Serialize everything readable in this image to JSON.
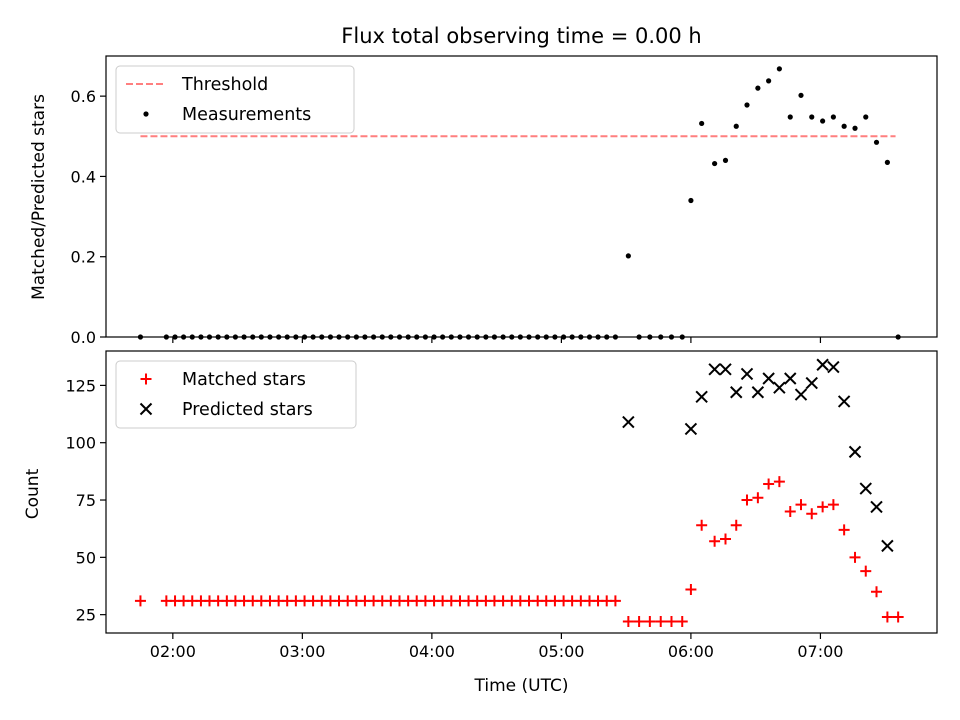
{
  "chart_data": [
    {
      "type": "scatter",
      "title": "Flux total observing time = 0.00 h",
      "xlabel": "",
      "ylabel": "Matched/Predicted stars",
      "xlim": [
        1.484,
        7.9
      ],
      "ylim": [
        0.0,
        0.7
      ],
      "yticks": [
        0.0,
        0.2,
        0.4,
        0.6
      ],
      "ytick_labels": [
        "0.0",
        "0.2",
        "0.4",
        "0.6"
      ],
      "grid": false,
      "legend_position": "top-left",
      "series": [
        {
          "name": "Threshold",
          "kind": "line",
          "style": "dashed",
          "color": "#ff7f7f",
          "x": [
            1.75,
            7.58
          ],
          "y": [
            0.5,
            0.5
          ]
        },
        {
          "name": "Measurements",
          "kind": "scatter",
          "marker": "dot",
          "color": "#000000",
          "x": [
            1.75,
            1.95,
            2.017,
            2.083,
            2.15,
            2.217,
            2.283,
            2.35,
            2.417,
            2.483,
            2.55,
            2.617,
            2.683,
            2.75,
            2.817,
            2.883,
            2.95,
            3.017,
            3.083,
            3.15,
            3.217,
            3.283,
            3.35,
            3.417,
            3.483,
            3.55,
            3.617,
            3.683,
            3.75,
            3.817,
            3.883,
            3.95,
            4.017,
            4.083,
            4.15,
            4.217,
            4.283,
            4.35,
            4.417,
            4.483,
            4.55,
            4.617,
            4.683,
            4.75,
            4.817,
            4.883,
            4.95,
            5.017,
            5.083,
            5.15,
            5.217,
            5.283,
            5.35,
            5.417,
            5.517,
            5.6,
            5.683,
            5.767,
            5.85,
            5.933,
            6.0,
            6.083,
            6.183,
            6.267,
            6.35,
            6.433,
            6.517,
            6.6,
            6.683,
            6.767,
            6.85,
            6.933,
            7.017,
            7.1,
            7.183,
            7.267,
            7.35,
            7.433,
            7.517,
            7.6
          ],
          "y": [
            0,
            0,
            0,
            0,
            0,
            0,
            0,
            0,
            0,
            0,
            0,
            0,
            0,
            0,
            0,
            0,
            0,
            0,
            0,
            0,
            0,
            0,
            0,
            0,
            0,
            0,
            0,
            0,
            0,
            0,
            0,
            0,
            0,
            0,
            0,
            0,
            0,
            0,
            0,
            0,
            0,
            0,
            0,
            0,
            0,
            0,
            0,
            0,
            0,
            0,
            0,
            0,
            0,
            0,
            0.202,
            0,
            0,
            0,
            0,
            0,
            0.34,
            0.532,
            0.432,
            0.44,
            0.525,
            0.578,
            0.62,
            0.638,
            0.668,
            0.548,
            0.602,
            0.548,
            0.538,
            0.548,
            0.525,
            0.52,
            0.548,
            0.485,
            0.435,
            0
          ]
        }
      ]
    },
    {
      "type": "scatter",
      "title": "",
      "xlabel": "Time (UTC)",
      "ylabel": "Count",
      "xlim": [
        1.484,
        7.9
      ],
      "ylim": [
        17,
        140
      ],
      "xticks": [
        2,
        3,
        4,
        5,
        6,
        7
      ],
      "xtick_labels": [
        "02:00",
        "03:00",
        "04:00",
        "05:00",
        "06:00",
        "07:00"
      ],
      "yticks": [
        25,
        50,
        75,
        100,
        125
      ],
      "ytick_labels": [
        "25",
        "50",
        "75",
        "100",
        "125"
      ],
      "grid": false,
      "legend_position": "top-left",
      "series": [
        {
          "name": "Matched stars",
          "kind": "scatter",
          "marker": "plus",
          "color": "#ff0000",
          "x": [
            1.75,
            1.95,
            2.017,
            2.083,
            2.15,
            2.217,
            2.283,
            2.35,
            2.417,
            2.483,
            2.55,
            2.617,
            2.683,
            2.75,
            2.817,
            2.883,
            2.95,
            3.017,
            3.083,
            3.15,
            3.217,
            3.283,
            3.35,
            3.417,
            3.483,
            3.55,
            3.617,
            3.683,
            3.75,
            3.817,
            3.883,
            3.95,
            4.017,
            4.083,
            4.15,
            4.217,
            4.283,
            4.35,
            4.417,
            4.483,
            4.55,
            4.617,
            4.683,
            4.75,
            4.817,
            4.883,
            4.95,
            5.017,
            5.083,
            5.15,
            5.217,
            5.283,
            5.35,
            5.417,
            5.517,
            5.6,
            5.683,
            5.767,
            5.85,
            5.933,
            6.0,
            6.083,
            6.183,
            6.267,
            6.35,
            6.433,
            6.517,
            6.6,
            6.683,
            6.767,
            6.85,
            6.933,
            7.017,
            7.1,
            7.183,
            7.267,
            7.35,
            7.433,
            7.517,
            7.6
          ],
          "y": [
            31,
            31,
            31,
            31,
            31,
            31,
            31,
            31,
            31,
            31,
            31,
            31,
            31,
            31,
            31,
            31,
            31,
            31,
            31,
            31,
            31,
            31,
            31,
            31,
            31,
            31,
            31,
            31,
            31,
            31,
            31,
            31,
            31,
            31,
            31,
            31,
            31,
            31,
            31,
            31,
            31,
            31,
            31,
            31,
            31,
            31,
            31,
            31,
            31,
            31,
            31,
            31,
            31,
            31,
            22,
            22,
            22,
            22,
            22,
            22,
            36,
            64,
            57,
            58,
            64,
            75,
            76,
            82,
            83,
            70,
            73,
            69,
            72,
            73,
            62,
            50,
            44,
            35,
            24,
            24
          ]
        },
        {
          "name": "Predicted stars",
          "kind": "scatter",
          "marker": "x",
          "color": "#000000",
          "x": [
            5.517,
            6.0,
            6.083,
            6.183,
            6.267,
            6.35,
            6.433,
            6.517,
            6.6,
            6.683,
            6.767,
            6.85,
            6.933,
            7.017,
            7.1,
            7.183,
            7.267,
            7.35,
            7.433,
            7.517
          ],
          "y": [
            109,
            106,
            120,
            132,
            132,
            122,
            130,
            122,
            128,
            124,
            128,
            121,
            126,
            134,
            133,
            118,
            96,
            80,
            72,
            55
          ]
        }
      ]
    }
  ]
}
